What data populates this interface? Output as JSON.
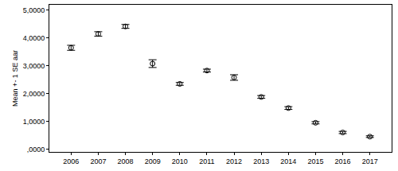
{
  "chart_data": {
    "type": "scatter",
    "y_label": "Mean +- 1 SE aar",
    "categories": [
      "2006",
      "2007",
      "2008",
      "2009",
      "2010",
      "2011",
      "2012",
      "2013",
      "2014",
      "2015",
      "2016",
      "2017"
    ],
    "values": [
      3.65,
      4.15,
      4.42,
      3.08,
      2.35,
      2.83,
      2.58,
      1.88,
      1.48,
      0.95,
      0.6,
      0.45
    ],
    "errors": [
      0.09,
      0.08,
      0.07,
      0.14,
      0.05,
      0.05,
      0.1,
      0.05,
      0.05,
      0.04,
      0.04,
      0.03
    ],
    "color": "#000000",
    "marker": "circle-open",
    "ylim": [
      -0.1,
      5.2
    ],
    "yticks": [
      {
        "value": 0,
        "label": ",0000"
      },
      {
        "value": 1,
        "label": "1,0000"
      },
      {
        "value": 2,
        "label": "2,0000"
      },
      {
        "value": 3,
        "label": "3,0000"
      },
      {
        "value": 4,
        "label": "4,0000"
      },
      {
        "value": 5,
        "label": "5,0000"
      }
    ],
    "grid": false
  }
}
